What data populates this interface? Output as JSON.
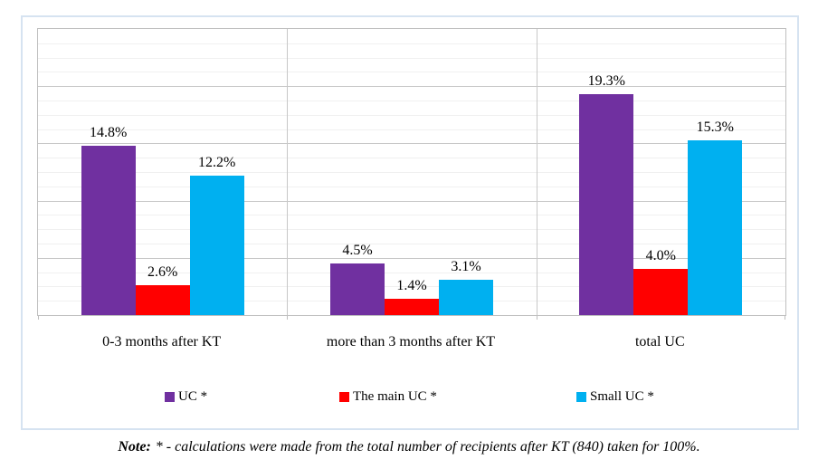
{
  "chart_data": {
    "type": "bar",
    "title": "",
    "xlabel": "",
    "ylabel": "",
    "categories": [
      "0-3 months after KT",
      "more than 3 months after KT",
      "total UC"
    ],
    "series": [
      {
        "name": "UC *",
        "color": "#7030A0",
        "values": [
          14.8,
          4.5,
          19.3
        ],
        "value_labels": [
          "14.8%",
          "4.5%",
          "19.3%"
        ]
      },
      {
        "name": "The main UC *",
        "color": "#FF0000",
        "values": [
          2.6,
          1.4,
          4.0
        ],
        "value_labels": [
          "2.6%",
          "1.4%",
          "4.0%"
        ]
      },
      {
        "name": "Small UC *",
        "color": "#00B0F0",
        "values": [
          12.2,
          3.1,
          15.3
        ],
        "value_labels": [
          "12.2%",
          "3.1%",
          "15.3%"
        ]
      }
    ],
    "ylim": [
      0,
      25
    ],
    "major_unit": 5,
    "minor_unit": 1.25,
    "grid": "horizontal major+minor, value axis hidden",
    "legend_position": "bottom"
  },
  "note": {
    "prefix": "Note:",
    "body": "* - calculations were made from the total number of recipients after KT (840) taken for 100%."
  },
  "colors": {
    "series_uc": "#7030A0",
    "series_main_uc": "#FF0000",
    "series_small_uc": "#00B0F0",
    "gridline_major": "#C8C8C8",
    "gridline_minor": "#F0F0F0",
    "plot_border": "#BFBFBF",
    "figure_border": "#D6E3F1"
  }
}
